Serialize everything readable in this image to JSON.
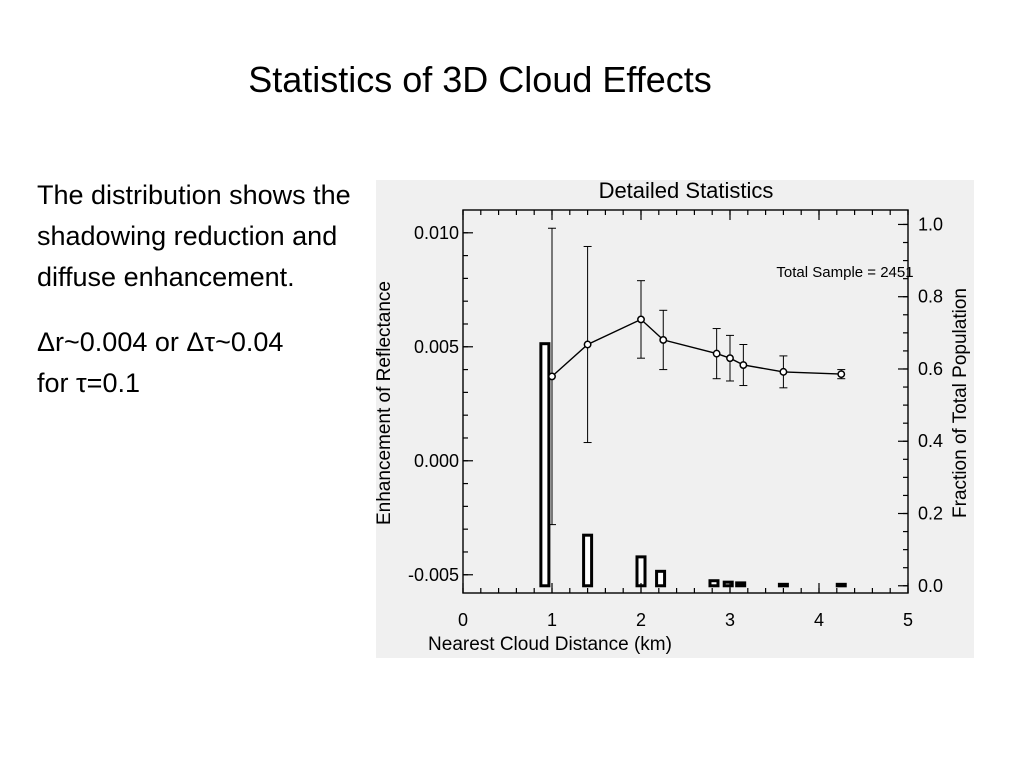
{
  "slide": {
    "title": "Statistics of 3D Cloud Effects",
    "paragraph1": "The distribution shows the shadowing reduction and diffuse enhancement.",
    "paragraph2_line1": "Δr~0.004 or Δτ~0.04",
    "paragraph2_line2": "for τ=0.1"
  },
  "chart_data": {
    "type": "line+bar",
    "title": "Detailed Statistics",
    "xlabel": "Nearest Cloud Distance (km)",
    "ylabel_left": "Enhancement of Reflectance",
    "ylabel_right": "Fraction of Total Population",
    "xlim": [
      0,
      5
    ],
    "ylim_left": [
      -0.0058,
      0.011
    ],
    "ylim_right": [
      -0.02,
      1.04
    ],
    "x_ticks": [
      "0",
      "1",
      "2",
      "3",
      "4",
      "5"
    ],
    "y_left_ticks": [
      "-0.005",
      "0.000",
      "0.005",
      "0.010"
    ],
    "y_right_ticks": [
      "0.0",
      "0.2",
      "0.4",
      "0.6",
      "0.8",
      "1.0"
    ],
    "annotation": "Total Sample = 2451",
    "series": [
      {
        "axis": "left",
        "style": "line with error bars",
        "x": [
          1.0,
          1.4,
          2.0,
          2.25,
          2.85,
          3.0,
          3.15,
          3.6,
          4.25
        ],
        "y": [
          0.0037,
          0.0051,
          0.0062,
          0.0053,
          0.0047,
          0.0045,
          0.0042,
          0.0039,
          0.0038
        ],
        "err": [
          0.0065,
          0.0043,
          0.0017,
          0.0013,
          0.0011,
          0.001,
          0.0009,
          0.0007,
          0.0002
        ]
      },
      {
        "axis": "right",
        "style": "bar",
        "x": [
          0.92,
          1.4,
          2.0,
          2.22,
          2.82,
          2.98,
          3.12,
          3.6,
          4.25
        ],
        "values": [
          0.67,
          0.14,
          0.08,
          0.04,
          0.014,
          0.01,
          0.008,
          0.004,
          0.004
        ]
      }
    ]
  }
}
